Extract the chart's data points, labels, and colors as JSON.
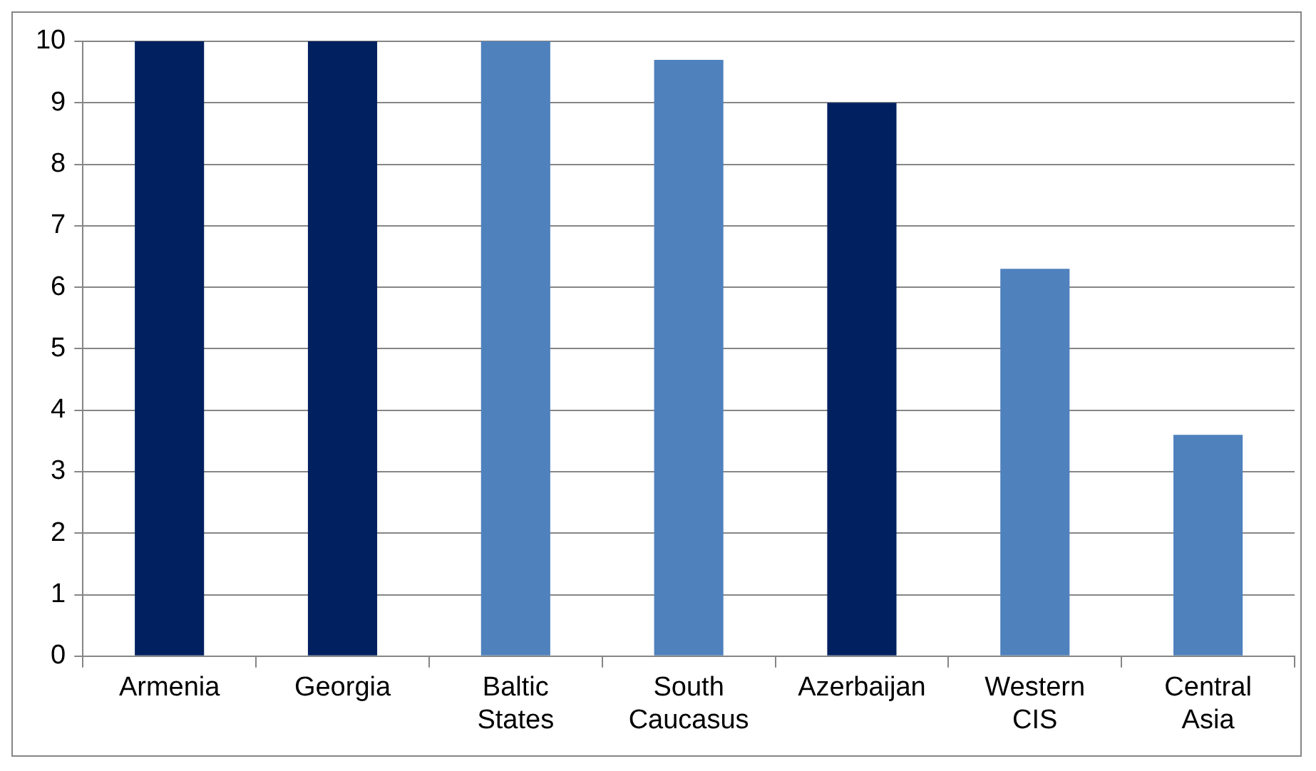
{
  "chart_data": {
    "type": "bar",
    "categories": [
      "Armenia",
      "Georgia",
      "Baltic States",
      "South Caucasus",
      "Azerbaijan",
      "Western CIS",
      "Central Asia"
    ],
    "values": [
      10,
      10,
      10,
      9.7,
      9.0,
      6.3,
      3.6
    ],
    "colors": [
      "#002060",
      "#002060",
      "#4f81bd",
      "#4f81bd",
      "#002060",
      "#4f81bd",
      "#4f81bd"
    ],
    "ylim": [
      0,
      10
    ],
    "yticks": [
      0,
      1,
      2,
      3,
      4,
      5,
      6,
      7,
      8,
      9,
      10
    ],
    "grid": "y",
    "legend": false
  }
}
